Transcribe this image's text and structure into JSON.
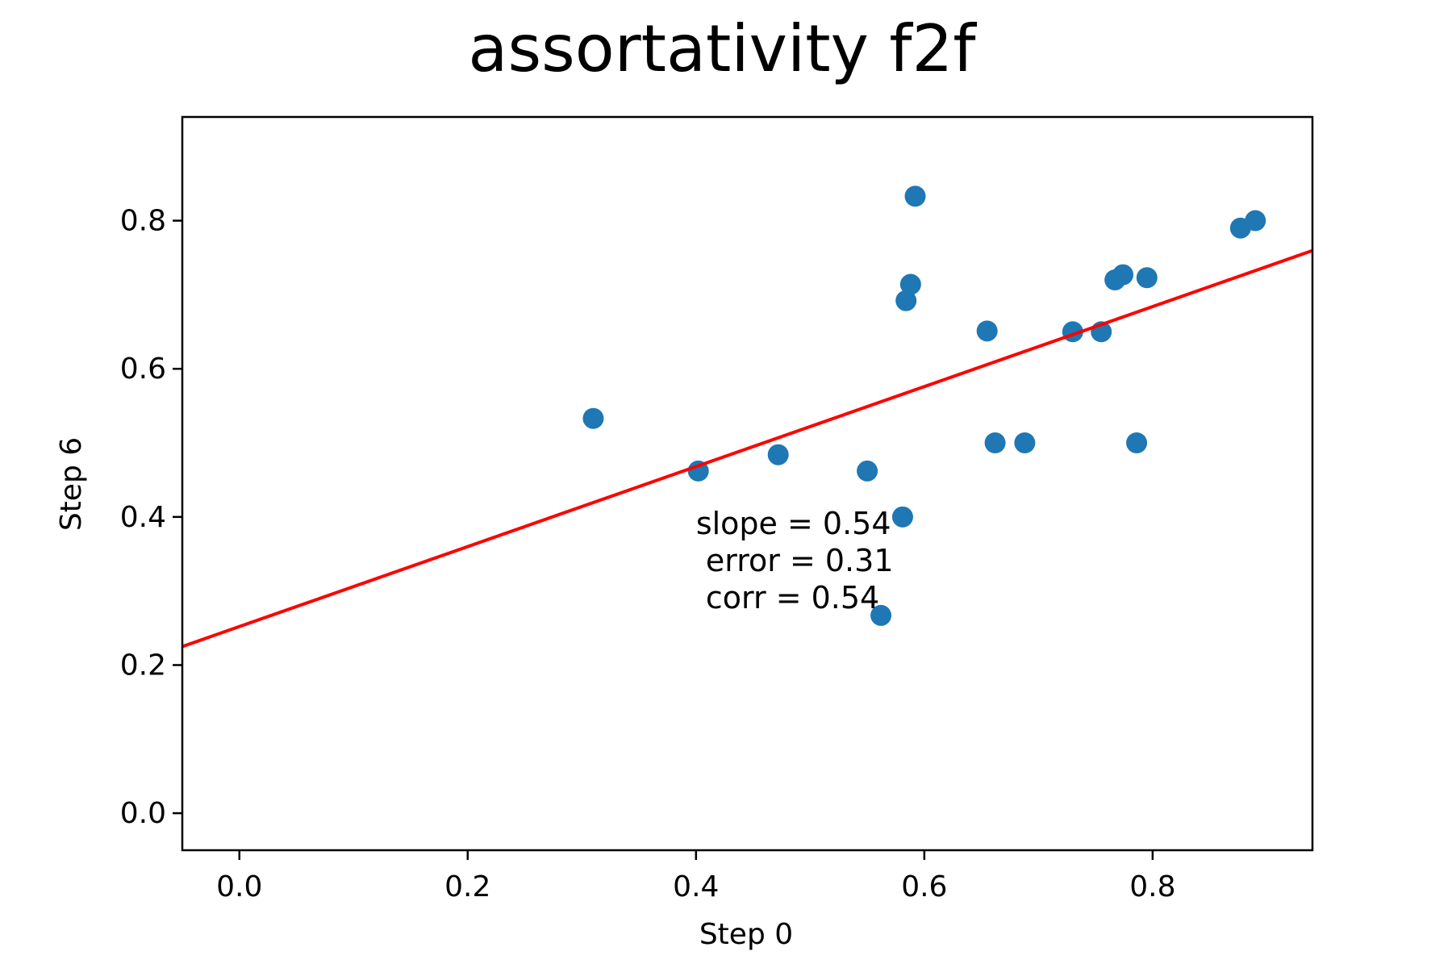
{
  "chart_data": {
    "type": "scatter",
    "title": "assortativity f2f",
    "xlabel": "Step 0",
    "ylabel": "Step 6",
    "xlim": [
      -0.05,
      0.94
    ],
    "ylim": [
      -0.05,
      0.94
    ],
    "xticks": [
      0.0,
      0.2,
      0.4,
      0.6,
      0.8
    ],
    "yticks": [
      0.0,
      0.2,
      0.4,
      0.6,
      0.8
    ],
    "xtick_labels": [
      "0.0",
      "0.2",
      "0.4",
      "0.6",
      "0.8"
    ],
    "ytick_labels": [
      "0.0",
      "0.2",
      "0.4",
      "0.6",
      "0.8"
    ],
    "grid": false,
    "points": [
      {
        "x": 0.31,
        "y": 0.533
      },
      {
        "x": 0.402,
        "y": 0.462
      },
      {
        "x": 0.472,
        "y": 0.484
      },
      {
        "x": 0.55,
        "y": 0.462
      },
      {
        "x": 0.562,
        "y": 0.267
      },
      {
        "x": 0.581,
        "y": 0.4
      },
      {
        "x": 0.584,
        "y": 0.692
      },
      {
        "x": 0.588,
        "y": 0.714
      },
      {
        "x": 0.592,
        "y": 0.833
      },
      {
        "x": 0.655,
        "y": 0.651
      },
      {
        "x": 0.662,
        "y": 0.5
      },
      {
        "x": 0.688,
        "y": 0.5
      },
      {
        "x": 0.73,
        "y": 0.65
      },
      {
        "x": 0.755,
        "y": 0.65
      },
      {
        "x": 0.767,
        "y": 0.72
      },
      {
        "x": 0.774,
        "y": 0.727
      },
      {
        "x": 0.786,
        "y": 0.5
      },
      {
        "x": 0.795,
        "y": 0.723
      },
      {
        "x": 0.877,
        "y": 0.79
      },
      {
        "x": 0.89,
        "y": 0.8
      }
    ],
    "fit_line": {
      "intercept": 0.252,
      "slope": 0.54,
      "color": "#ff0000"
    },
    "annotation": {
      "x": 0.4,
      "y": 0.34,
      "lines": [
        "slope = 0.54",
        " error = 0.31",
        " corr = 0.54"
      ]
    },
    "point_color": "#1f77b4"
  }
}
